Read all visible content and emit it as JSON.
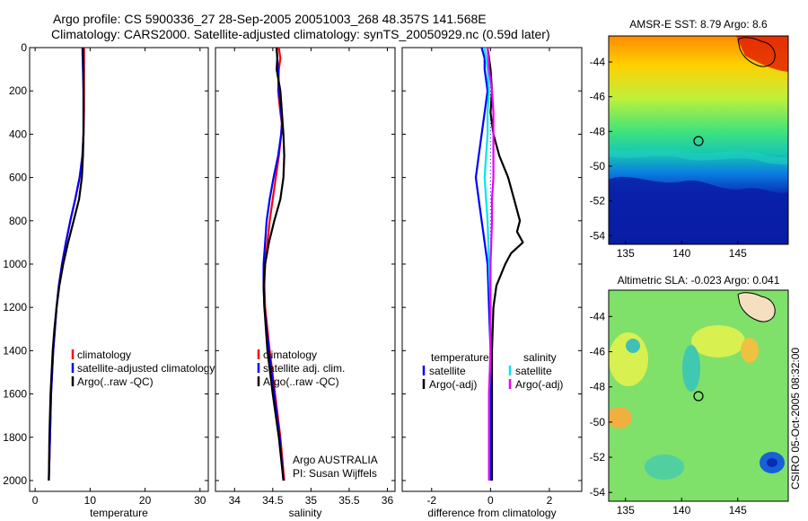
{
  "header": {
    "line1": "Argo profile: CS 5900336_27 28-Sep-2005 20051003_268 48.357S 141.568E",
    "line2": "Climatology: CARS2000. Satellite-adjusted climatology: synTS_20050929.nc (0.59d later)"
  },
  "footer_credit": "CSIRO 05-Oct-2005 08:32:00",
  "colors": {
    "climatology": "#ff0000",
    "satellite": "#0000ff",
    "argo": "#000000",
    "sal_satellite": "#00e5ee",
    "sal_argo": "#ee00ee",
    "dotted": "#0000ff"
  },
  "chart_data": [
    {
      "type": "line",
      "xlabel": "temperature",
      "ylabel": "",
      "xlim": [
        -1,
        31.5
      ],
      "ylim": [
        2050,
        0
      ],
      "xticks": [
        0,
        10,
        20,
        30
      ],
      "yticks": [
        0,
        200,
        400,
        600,
        800,
        1000,
        1200,
        1400,
        1600,
        1800,
        2000
      ],
      "legend": {
        "placement": "lower-right",
        "entries": [
          "climatology",
          "satellite-adjusted climatology",
          "Argo(..raw -QC)"
        ]
      },
      "series": [
        {
          "name": "climatology",
          "color": "#ff0000",
          "depth": [
            0,
            100,
            200,
            300,
            400,
            500,
            600,
            700,
            800,
            900,
            1000,
            1100,
            1200,
            1300,
            1400,
            1500,
            1600,
            1800,
            2000
          ],
          "values": [
            8.9,
            8.9,
            8.9,
            8.9,
            8.8,
            8.6,
            8.1,
            7.3,
            6.4,
            5.6,
            4.9,
            4.3,
            3.9,
            3.6,
            3.3,
            3.1,
            2.9,
            2.7,
            2.5
          ]
        },
        {
          "name": "satellite-adjusted climatology",
          "color": "#0000ff",
          "depth": [
            0,
            100,
            200,
            300,
            400,
            500,
            600,
            700,
            800,
            900,
            1000,
            1100,
            1200,
            1300,
            1400,
            1500,
            1600,
            1800,
            2000
          ],
          "values": [
            8.6,
            8.7,
            8.8,
            8.8,
            8.8,
            8.6,
            8.1,
            7.3,
            6.4,
            5.6,
            4.9,
            4.3,
            3.9,
            3.6,
            3.3,
            3.1,
            2.9,
            2.7,
            2.5
          ]
        },
        {
          "name": "Argo(..raw -QC)",
          "color": "#000000",
          "depth": [
            0,
            100,
            200,
            300,
            400,
            500,
            600,
            700,
            800,
            900,
            1000,
            1100,
            1200,
            1300,
            1400,
            1500,
            1600,
            1800,
            2000
          ],
          "values": [
            8.7,
            8.8,
            8.8,
            8.8,
            8.8,
            8.7,
            8.5,
            8.0,
            7.0,
            6.0,
            5.1,
            4.4,
            3.9,
            3.5,
            3.2,
            3.0,
            2.8,
            2.6,
            2.5
          ]
        }
      ]
    },
    {
      "type": "line",
      "xlabel": "salinity",
      "ylabel": "",
      "xlim": [
        33.75,
        36.1
      ],
      "ylim": [
        2050,
        0
      ],
      "xticks": [
        34,
        34.5,
        35,
        35.5,
        36
      ],
      "xtick_labels": [
        "34",
        "34.5",
        "35",
        "35.5",
        "36"
      ],
      "legend": {
        "placement": "lower-right",
        "entries": [
          "climatology",
          "satellite adj. clim.",
          "Argo(..raw -QC)"
        ]
      },
      "annotations": [
        "Argo AUSTRALIA",
        "PI: Susan Wijffels"
      ],
      "series": [
        {
          "name": "climatology",
          "color": "#ff0000",
          "depth": [
            0,
            50,
            100,
            200,
            300,
            350,
            400,
            500,
            600,
            700,
            800,
            900,
            1000,
            1100,
            1200,
            1400,
            1600,
            1800,
            2000
          ],
          "values": [
            34.58,
            34.6,
            34.58,
            34.57,
            34.6,
            34.62,
            34.61,
            34.58,
            34.54,
            34.5,
            34.46,
            34.43,
            34.4,
            34.39,
            34.4,
            34.46,
            34.53,
            34.6,
            34.65
          ]
        },
        {
          "name": "satellite adj. clim.",
          "color": "#0000ff",
          "depth": [
            0,
            50,
            100,
            200,
            300,
            350,
            400,
            500,
            600,
            700,
            800,
            900,
            1000,
            1100,
            1200,
            1400,
            1600,
            1800,
            2000
          ],
          "values": [
            34.55,
            34.56,
            34.57,
            34.58,
            34.61,
            34.62,
            34.61,
            34.57,
            34.51,
            34.46,
            34.42,
            34.4,
            34.38,
            34.38,
            34.39,
            34.45,
            34.52,
            34.59,
            34.64
          ]
        },
        {
          "name": "Argo(..raw -QC)",
          "color": "#000000",
          "depth": [
            0,
            50,
            100,
            200,
            300,
            400,
            500,
            600,
            700,
            800,
            900,
            1000,
            1100,
            1200,
            1300,
            1400,
            1600,
            1800,
            2000
          ],
          "values": [
            34.55,
            34.56,
            34.55,
            34.6,
            34.62,
            34.64,
            34.65,
            34.64,
            34.6,
            34.52,
            34.45,
            34.4,
            34.38,
            34.39,
            34.41,
            34.43,
            34.5,
            34.58,
            34.64
          ]
        }
      ]
    },
    {
      "type": "line",
      "xlabel": "difference from climatology",
      "ylabel": "",
      "xlim": [
        -3,
        3.1
      ],
      "ylim": [
        2050,
        0
      ],
      "xticks": [
        -2,
        0,
        2
      ],
      "reference_line": {
        "x": 0,
        "style": "dotted"
      },
      "legend": {
        "placement": "lower-right",
        "groups": [
          {
            "title": "temperature",
            "entries": [
              "satellite",
              "Argo(-adj)"
            ]
          },
          {
            "title": "salinity",
            "entries": [
              "satellite",
              "Argo(-adj)"
            ]
          }
        ]
      },
      "series": [
        {
          "name": "temperature satellite",
          "color": "#0000ff",
          "depth": [
            0,
            50,
            100,
            200,
            300,
            400,
            500,
            600,
            700,
            800,
            900,
            1000,
            1200,
            1400,
            1600,
            1800,
            2000
          ],
          "values": [
            -0.3,
            -0.2,
            -0.2,
            -0.1,
            -0.2,
            -0.3,
            -0.4,
            -0.5,
            -0.4,
            -0.3,
            -0.2,
            -0.1,
            -0.05,
            0,
            0,
            0,
            0
          ]
        },
        {
          "name": "temperature Argo(-adj)",
          "color": "#000000",
          "depth": [
            0,
            100,
            200,
            300,
            400,
            500,
            600,
            700,
            800,
            850,
            900,
            950,
            1000,
            1100,
            1200,
            1400,
            1600,
            1800,
            2000
          ],
          "values": [
            -0.1,
            0,
            0.05,
            0,
            0.1,
            0.3,
            0.6,
            0.8,
            1.0,
            0.9,
            1.1,
            0.7,
            0.5,
            0.2,
            0.1,
            0.05,
            0.05,
            0.05,
            0.05
          ]
        },
        {
          "name": "salinity satellite",
          "color": "#00e5ee",
          "depth": [
            0,
            100,
            200,
            300,
            400,
            500,
            600,
            700,
            800,
            1000,
            1200,
            1400,
            1600,
            1800,
            2000
          ],
          "values": [
            -0.2,
            -0.1,
            -0.05,
            -0.1,
            -0.1,
            -0.15,
            -0.2,
            -0.15,
            -0.1,
            -0.05,
            0,
            0,
            -0.05,
            -0.05,
            -0.05
          ]
        },
        {
          "name": "salinity Argo(-adj)",
          "color": "#ee00ee",
          "depth": [
            0,
            100,
            200,
            300,
            400,
            500,
            600,
            700,
            800,
            1000,
            1200,
            1400,
            1600,
            1800,
            2000
          ],
          "values": [
            -0.1,
            -0.05,
            0.05,
            0.1,
            0.1,
            0.1,
            0.1,
            0.05,
            0.05,
            0,
            0,
            0,
            -0.05,
            -0.05,
            -0.05
          ]
        }
      ]
    },
    {
      "type": "heatmap",
      "title": "AMSR-E SST: 8.79 Argo: 8.6",
      "xlabel": "",
      "ylabel": "",
      "xlim": [
        133.5,
        149.5
      ],
      "ylim": [
        -54.5,
        -42.5
      ],
      "xticks": [
        135,
        140,
        145
      ],
      "yticks": [
        -44,
        -46,
        -48,
        -50,
        -52,
        -54
      ],
      "colormap": "jet",
      "marker": {
        "lon": 141.568,
        "lat": -48.357,
        "shape": "circle"
      }
    },
    {
      "type": "heatmap",
      "title": "Altimetric SLA: -0.023 Argo: 0.041",
      "xlabel": "",
      "ylabel": "",
      "xlim": [
        133.5,
        149.5
      ],
      "ylim": [
        -54.5,
        -42.5
      ],
      "xticks": [
        135,
        140,
        145
      ],
      "yticks": [
        -44,
        -46,
        -48,
        -50,
        -52,
        -54
      ],
      "colormap": "jet",
      "marker": {
        "lon": 141.568,
        "lat": -48.357,
        "shape": "circle"
      }
    }
  ]
}
